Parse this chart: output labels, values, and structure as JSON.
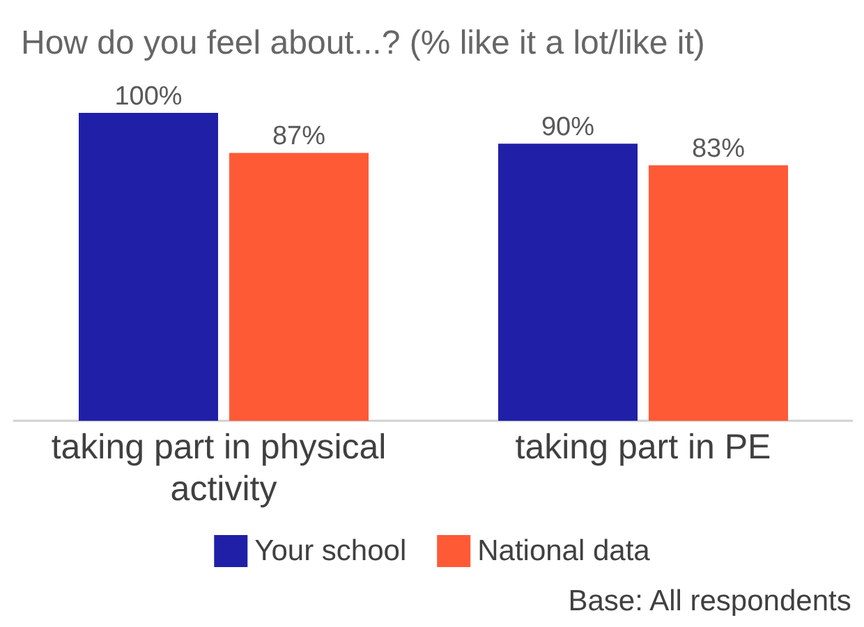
{
  "chart_data": {
    "type": "bar",
    "title": "How do you feel about...? (% like it a lot/like it)",
    "categories": [
      "taking part in physical activity",
      "taking part in PE"
    ],
    "series": [
      {
        "name": "Your school",
        "color": "#1f20a7",
        "values": [
          100,
          90
        ],
        "value_labels": [
          "100%",
          "90%"
        ]
      },
      {
        "name": "National data",
        "color": "#ff5a36",
        "values": [
          87,
          83
        ],
        "value_labels": [
          "87%",
          "83%"
        ]
      }
    ],
    "legend": "bottom",
    "tick_labels": "x",
    "annotations": [
      "Base: All respondents"
    ]
  }
}
